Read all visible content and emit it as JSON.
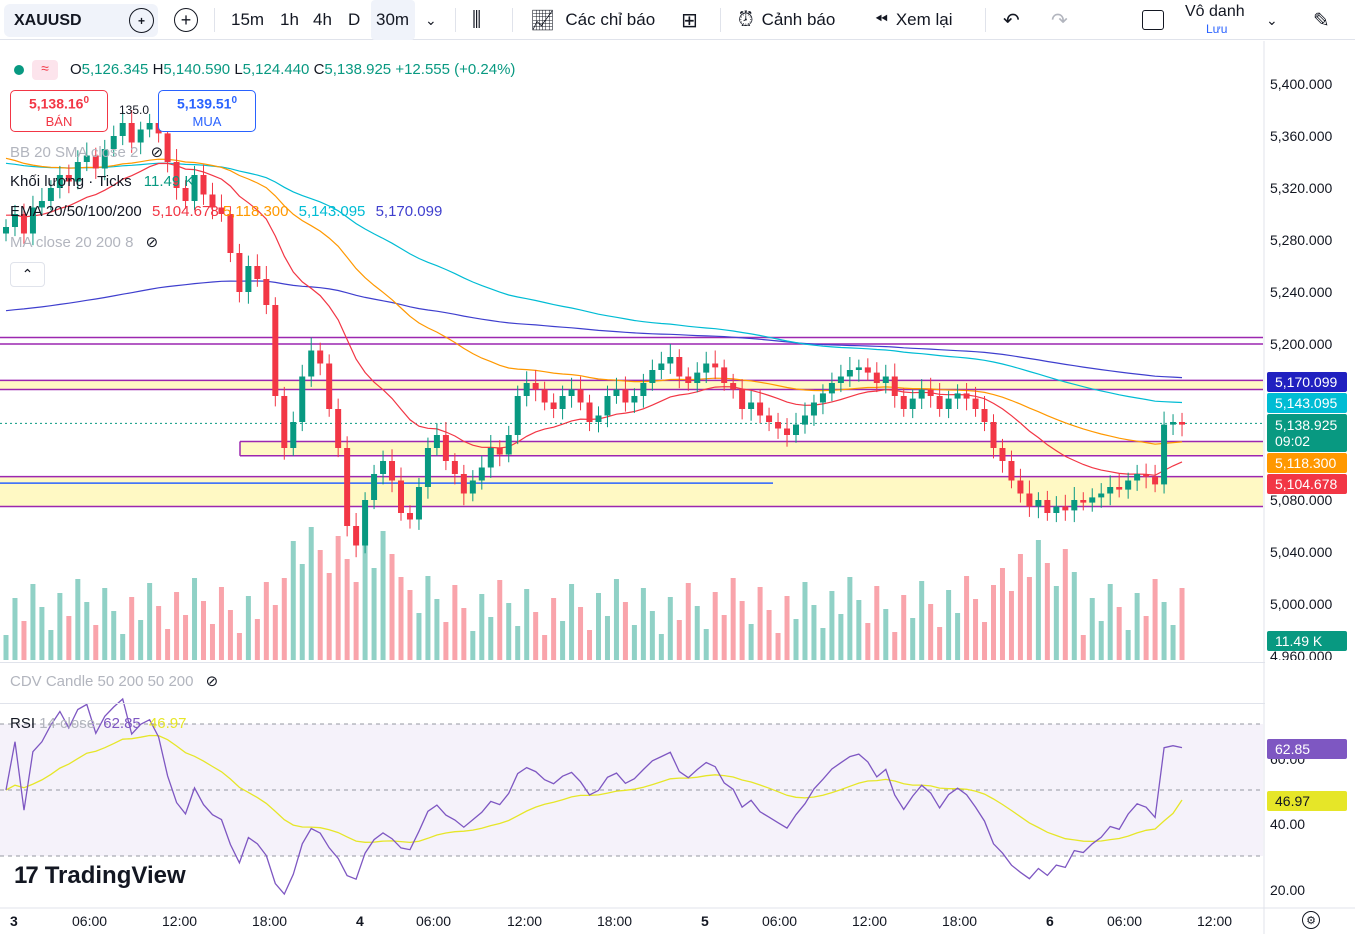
{
  "toolbar": {
    "symbol": "XAUUSD",
    "timeframes": [
      "15m",
      "1h",
      "4h",
      "D",
      "30m"
    ],
    "active_timeframe": "30m",
    "indicators_label": "Các chỉ báo",
    "alerts_label": "Cảnh báo",
    "replay_label": "Xem lại",
    "account_name": "Vô danh",
    "save_label": "Lưu"
  },
  "legend": {
    "o_label": "O",
    "o": "5,126.345",
    "h_label": "H",
    "h": "5,140.590",
    "l_label": "L",
    "l": "5,124.440",
    "c_label": "C",
    "c": "5,138.925",
    "change": "+12.555 (+0.24%)"
  },
  "trade": {
    "sell_price": "5,138.16",
    "sell_sup": "0",
    "sell_label": "BÁN",
    "buy_price": "5,139.51",
    "buy_sup": "0",
    "buy_label": "MUA",
    "spread": "135.0"
  },
  "indicators": {
    "bb": "BB 20 SMA close 2",
    "volume_label": "Khối lượng · Ticks",
    "volume_value": "11.49 K",
    "ema_label": "EMA 20/50/100/200",
    "ema20": "5,104.678",
    "ema50": "5,118.300",
    "ema100": "5,143.095",
    "ema200": "5,170.099",
    "ma": "MA close 20 200 8",
    "cdv": "CDV Candle 50 200 50 200",
    "rsi_label": "RSI",
    "rsi_params": "14 close",
    "rsi_value": "62.85",
    "rsi_ma": "46.97"
  },
  "price_axis": {
    "labels": [
      "5,400.000",
      "5,360.000",
      "5,320.000",
      "5,280.000",
      "5,240.000",
      "5,200.000",
      "5,080.000",
      "5,040.000",
      "5,000.000",
      "4,960.000"
    ],
    "tags": {
      "ema200": "5,170.099",
      "ema100": "5,143.095",
      "last": "5,138.925",
      "countdown": "09:02",
      "ema50": "5,118.300",
      "ema20": "5,104.678",
      "volume": "11.49 K"
    },
    "rsi_labels": [
      "60.00",
      "40.00",
      "20.00"
    ],
    "rsi_tags": {
      "rsi": "62.85",
      "rsi_ma": "46.97"
    }
  },
  "time_axis": [
    "3",
    "06:00",
    "12:00",
    "18:00",
    "4",
    "06:00",
    "12:00",
    "18:00",
    "5",
    "06:00",
    "12:00",
    "18:00",
    "6",
    "06:00",
    "12:00"
  ],
  "brand": "TradingView",
  "colors": {
    "up": "#089981",
    "down": "#f23645",
    "ema20": "#f23645",
    "ema50": "#ff9800",
    "ema100": "#00bcd4",
    "ema200": "#3f3fce",
    "levels": "#9c27b0",
    "zone": "#fff9c4",
    "rsi": "#7e57c2",
    "rsi_ma": "#e6e628"
  },
  "chart_data": {
    "type": "candlestick",
    "symbol": "XAUUSD",
    "interval": "30m",
    "price_range": [
      4960,
      5420
    ],
    "closes": [
      5290,
      5300,
      5285,
      5305,
      5310,
      5320,
      5330,
      5325,
      5340,
      5345,
      5335,
      5350,
      5360,
      5370,
      5355,
      5365,
      5370,
      5362,
      5340,
      5320,
      5310,
      5330,
      5315,
      5305,
      5300,
      5270,
      5240,
      5260,
      5250,
      5230,
      5160,
      5120,
      5140,
      5175,
      5195,
      5185,
      5150,
      5120,
      5060,
      5045,
      5080,
      5100,
      5110,
      5095,
      5070,
      5065,
      5090,
      5120,
      5130,
      5110,
      5100,
      5085,
      5095,
      5105,
      5120,
      5115,
      5130,
      5160,
      5170,
      5165,
      5155,
      5150,
      5160,
      5165,
      5155,
      5140,
      5145,
      5160,
      5165,
      5155,
      5160,
      5170,
      5180,
      5185,
      5190,
      5175,
      5170,
      5178,
      5185,
      5182,
      5170,
      5165,
      5150,
      5155,
      5145,
      5140,
      5135,
      5130,
      5138,
      5145,
      5155,
      5162,
      5170,
      5175,
      5180,
      5182,
      5178,
      5170,
      5175,
      5160,
      5150,
      5158,
      5165,
      5160,
      5150,
      5158,
      5162,
      5158,
      5150,
      5140,
      5120,
      5110,
      5095,
      5085,
      5075,
      5080,
      5070,
      5075,
      5072,
      5080,
      5078,
      5082,
      5085,
      5090,
      5088,
      5095,
      5100,
      5098,
      5092,
      5138,
      5140,
      5138
    ],
    "volume_last": "11.49 K",
    "levels": [
      5205,
      5200,
      5172,
      5165,
      5125,
      5114,
      5098,
      5075
    ],
    "blue_level": 5093,
    "rsi_last": 62.85,
    "rsi_ma_last": 46.97
  }
}
